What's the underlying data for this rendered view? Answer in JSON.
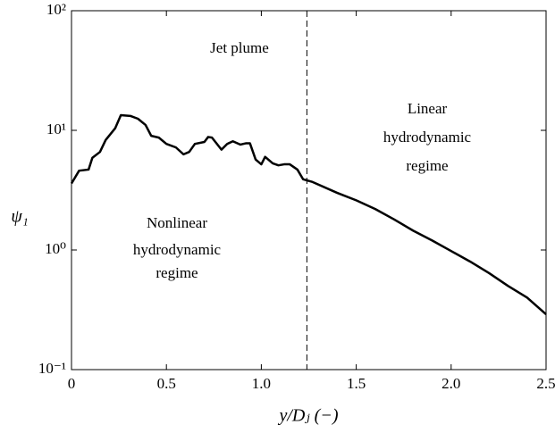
{
  "chart_data": {
    "type": "line",
    "xlabel": "y/Dⱼ (−)",
    "ylabel": "ψ₁",
    "annotations": [
      {
        "lines": [
          "Jet plume"
        ]
      },
      {
        "lines": [
          "Linear",
          "hydrodynamic",
          "regime"
        ]
      },
      {
        "lines": [
          "Nonlinear",
          "hydrodynamic",
          "regime"
        ]
      }
    ],
    "vline": 1.24,
    "x": [
      0,
      0.04,
      0.09,
      0.11,
      0.15,
      0.18,
      0.23,
      0.26,
      0.31,
      0.35,
      0.39,
      0.42,
      0.46,
      0.5,
      0.55,
      0.59,
      0.62,
      0.65,
      0.7,
      0.72,
      0.74,
      0.79,
      0.82,
      0.85,
      0.89,
      0.92,
      0.94,
      0.97,
      1.0,
      1.02,
      1.06,
      1.09,
      1.12,
      1.15,
      1.19,
      1.22,
      1.27,
      1.4,
      1.5,
      1.6,
      1.7,
      1.8,
      1.9,
      2.0,
      2.1,
      2.2,
      2.3,
      2.4,
      2.5
    ],
    "series": [
      {
        "name": "psi1",
        "color": "#000000",
        "values": [
          3.6,
          4.6,
          4.7,
          5.9,
          6.6,
          8.3,
          10.4,
          13.4,
          13.2,
          12.5,
          11.1,
          9.0,
          8.7,
          7.7,
          7.2,
          6.3,
          6.6,
          7.7,
          8.0,
          8.8,
          8.7,
          6.9,
          7.7,
          8.1,
          7.6,
          7.8,
          7.8,
          5.7,
          5.2,
          6.0,
          5.3,
          5.1,
          5.2,
          5.2,
          4.7,
          3.9,
          3.7,
          3.0,
          2.6,
          2.2,
          1.8,
          1.45,
          1.2,
          0.98,
          0.8,
          0.64,
          0.5,
          0.4,
          0.29
        ]
      }
    ],
    "xlim": [
      0,
      2.5
    ],
    "xticks": [
      0,
      0.5,
      {
        "value": 1,
        "label": "1.0"
      },
      1.5,
      {
        "value": 2,
        "label": "2.0"
      },
      2.5
    ],
    "ylim": [
      0.1,
      100
    ],
    "ylog": true,
    "yticks": [
      {
        "value": 0.1,
        "label": "10⁻¹"
      },
      {
        "value": 1,
        "label": "10⁰"
      },
      {
        "value": 10,
        "label": "10¹"
      },
      {
        "value": 100,
        "label": "10²"
      }
    ]
  }
}
